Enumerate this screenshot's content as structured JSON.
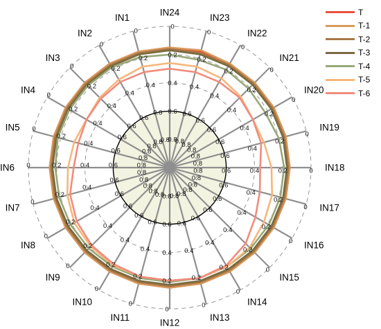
{
  "chart_data": {
    "type": "radar",
    "scale": "inverted",
    "rlim": [
      0,
      1
    ],
    "radial_ticks": [
      0,
      0.2,
      0.4,
      0.6,
      0.8
    ],
    "inner_reference_ring": 0.6,
    "inner_fill_color": "#f3f3e1",
    "grid": true,
    "legend_position": "top-right",
    "categories": [
      "IN24",
      "IN23",
      "IN22",
      "IN21",
      "IN20",
      "IN19",
      "IN18",
      "IN17",
      "IN16",
      "IN15",
      "IN14",
      "IN13",
      "IN12",
      "IN11",
      "IN10",
      "IN9",
      "IN8",
      "IN7",
      "IN6",
      "IN5",
      "IN4",
      "IN3",
      "IN2",
      "IN1"
    ],
    "series": [
      {
        "name": "T",
        "color": "#e8503a",
        "values": [
          0.15,
          0.15,
          0.15,
          0.15,
          0.15,
          0.15,
          0.15,
          0.15,
          0.15,
          0.15,
          0.15,
          0.15,
          0.15,
          0.15,
          0.15,
          0.15,
          0.15,
          0.15,
          0.15,
          0.15,
          0.15,
          0.15,
          0.15,
          0.15
        ]
      },
      {
        "name": "T-1",
        "color": "#d99a5c",
        "values": [
          0.15,
          0.14,
          0.15,
          0.15,
          0.15,
          0.15,
          0.15,
          0.15,
          0.15,
          0.15,
          0.15,
          0.15,
          0.15,
          0.15,
          0.15,
          0.15,
          0.15,
          0.15,
          0.15,
          0.15,
          0.15,
          0.15,
          0.15,
          0.15
        ]
      },
      {
        "name": "T-2",
        "color": "#a87848",
        "values": [
          0.16,
          0.16,
          0.16,
          0.16,
          0.16,
          0.16,
          0.16,
          0.16,
          0.16,
          0.16,
          0.16,
          0.16,
          0.16,
          0.16,
          0.16,
          0.16,
          0.16,
          0.16,
          0.16,
          0.16,
          0.16,
          0.16,
          0.16,
          0.16
        ]
      },
      {
        "name": "T-3",
        "color": "#7a6a3e",
        "values": [
          0.17,
          0.17,
          0.17,
          0.17,
          0.17,
          0.17,
          0.17,
          0.17,
          0.17,
          0.17,
          0.17,
          0.17,
          0.17,
          0.17,
          0.17,
          0.17,
          0.17,
          0.17,
          0.17,
          0.17,
          0.17,
          0.17,
          0.17,
          0.17
        ]
      },
      {
        "name": "T-4",
        "color": "#98a878",
        "values": [
          0.2,
          0.21,
          0.2,
          0.21,
          0.22,
          0.2,
          0.19,
          0.19,
          0.19,
          0.19,
          0.19,
          0.19,
          0.19,
          0.19,
          0.19,
          0.19,
          0.19,
          0.19,
          0.19,
          0.18,
          0.18,
          0.18,
          0.18,
          0.19
        ]
      },
      {
        "name": "T-5",
        "color": "#f6b67a",
        "values": [
          0.26,
          0.26,
          0.27,
          0.29,
          0.32,
          0.31,
          0.28,
          0.25,
          0.23,
          0.2,
          0.19,
          0.19,
          0.2,
          0.2,
          0.2,
          0.21,
          0.22,
          0.25,
          0.28,
          0.3,
          0.32,
          0.3,
          0.28,
          0.26
        ]
      },
      {
        "name": "T-6",
        "color": "#f08c7c",
        "values": [
          0.3,
          0.3,
          0.3,
          0.3,
          0.32,
          0.33,
          0.36,
          0.34,
          0.3,
          0.24,
          0.2,
          0.19,
          0.2,
          0.2,
          0.21,
          0.22,
          0.24,
          0.27,
          0.32,
          0.33,
          0.32,
          0.31,
          0.3,
          0.3
        ]
      }
    ]
  }
}
